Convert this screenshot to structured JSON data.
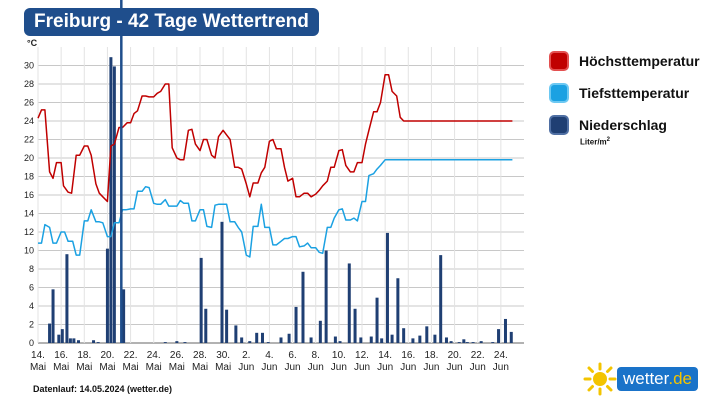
{
  "title": "Freiburg - 42 Tage Wettertrend",
  "legend": {
    "max_label": "Höchsttemperatur",
    "min_label": "Tiefsttemperatur",
    "precip_label": "Niederschlag",
    "precip_unit": "Liter/m",
    "precip_unit_sup": "2"
  },
  "footer": "Datenlauf: 14.05.2024 (wetter.de)",
  "logo": {
    "text_main": "wetter",
    "text_suffix": ".de"
  },
  "colors": {
    "max": "#c00000",
    "min": "#1ba1e2",
    "precip": "#1f3f73",
    "title_bg": "#1f4e8c"
  },
  "chart_data": {
    "type": "line",
    "y_unit": "°C",
    "ylim": [
      0,
      32
    ],
    "yticks": [
      0,
      2,
      4,
      6,
      8,
      10,
      12,
      14,
      16,
      18,
      20,
      22,
      24,
      26,
      28,
      30
    ],
    "grid": true,
    "x_range": [
      0,
      42
    ],
    "x_ticks": [
      {
        "x": 0,
        "day": "14.",
        "month": "Mai"
      },
      {
        "x": 2,
        "day": "16.",
        "month": "Mai"
      },
      {
        "x": 4,
        "day": "18.",
        "month": "Mai"
      },
      {
        "x": 6,
        "day": "20.",
        "month": "Mai"
      },
      {
        "x": 8,
        "day": "22.",
        "month": "Mai"
      },
      {
        "x": 10,
        "day": "24.",
        "month": "Mai"
      },
      {
        "x": 12,
        "day": "26.",
        "month": "Mai"
      },
      {
        "x": 14,
        "day": "28.",
        "month": "Mai"
      },
      {
        "x": 16,
        "day": "30.",
        "month": "Mai"
      },
      {
        "x": 18,
        "day": "2.",
        "month": "Jun"
      },
      {
        "x": 20,
        "day": "4.",
        "month": "Jun"
      },
      {
        "x": 22,
        "day": "6.",
        "month": "Jun"
      },
      {
        "x": 24,
        "day": "8.",
        "month": "Jun"
      },
      {
        "x": 26,
        "day": "10.",
        "month": "Jun"
      },
      {
        "x": 28,
        "day": "12.",
        "month": "Jun"
      },
      {
        "x": 30,
        "day": "14.",
        "month": "Jun"
      },
      {
        "x": 32,
        "day": "16.",
        "month": "Jun"
      },
      {
        "x": 34,
        "day": "18.",
        "month": "Jun"
      },
      {
        "x": 36,
        "day": "20.",
        "month": "Jun"
      },
      {
        "x": 38,
        "day": "22.",
        "month": "Jun"
      },
      {
        "x": 40,
        "day": "24.",
        "month": "Jun"
      }
    ],
    "current_day_x": 7.2,
    "series": [
      {
        "name": "Höchsttemperatur",
        "x": [
          0,
          0.3,
          0.6,
          1,
          1.3,
          1.6,
          2,
          2.2,
          2.6,
          2.9,
          3.3,
          3.6,
          4,
          4.3,
          4.6,
          5,
          5.3,
          5.6,
          6,
          6.3,
          6.6,
          7,
          7.3,
          7.7,
          8,
          8.3,
          8.6,
          9,
          9.3,
          9.6,
          10,
          10.3,
          10.6,
          11,
          11.3,
          11.6,
          12,
          12.3,
          12.6,
          13,
          13.3,
          13.6,
          14,
          14.3,
          14.6,
          15,
          15.3,
          15.6,
          16,
          16.3,
          16.6,
          17,
          17.3,
          17.6,
          18,
          18.3,
          18.6,
          19,
          19.3,
          19.6,
          20,
          20.3,
          20.6,
          21,
          21.3,
          21.6,
          22,
          22.3,
          22.6,
          23,
          23.3,
          23.6,
          24,
          24.3,
          24.6,
          25,
          25.3,
          25.6,
          26,
          26.3,
          26.6,
          27,
          27.3,
          27.6,
          28,
          28.3,
          28.6,
          29,
          29.3,
          29.6,
          30,
          30.3,
          30.6,
          31,
          31.3,
          31.6,
          32,
          32.3,
          32.6,
          33,
          33.3,
          33.6,
          34,
          34.3,
          34.6,
          35,
          35.3,
          35.6,
          36,
          36.3,
          36.6,
          37,
          37.3,
          37.6,
          38,
          38.3,
          38.6,
          39,
          39.3,
          39.6,
          40,
          40.3,
          40.6,
          41
        ],
        "values": [
          24.3,
          25.2,
          25.2,
          18.5,
          17.8,
          19.5,
          19.5,
          17,
          16.3,
          16.2,
          20.3,
          20.3,
          21.3,
          21.3,
          20.3,
          17.2,
          16.2,
          15.8,
          15.3,
          21.3,
          21.5,
          23.3,
          23.3,
          23.8,
          23.8,
          24.8,
          25.1,
          26.7,
          26.7,
          26.6,
          26.6,
          27,
          27.2,
          28,
          28,
          21.1,
          20,
          19.8,
          19.8,
          23,
          23.1,
          21.5,
          20.8,
          22,
          22,
          20.3,
          20,
          22.3,
          23,
          22.5,
          22,
          19,
          19,
          18.8,
          17.2,
          15.8,
          17.3,
          17.3,
          18.4,
          19,
          21.8,
          22,
          21,
          21,
          19,
          17.5,
          17.8,
          15.8,
          15.8,
          16.2,
          16.2,
          15.8,
          16.1,
          16.5,
          17,
          17.5,
          19,
          19,
          20.8,
          20.9,
          19.2,
          18.5,
          18.5,
          19.5,
          19.5,
          21.5,
          23,
          25,
          25,
          26,
          29,
          29,
          27.2,
          26.7,
          24.4,
          24,
          24,
          24,
          24,
          24,
          24,
          24,
          24,
          24,
          24,
          24,
          24,
          24,
          24,
          24,
          24,
          24,
          24,
          24,
          24,
          24,
          24,
          24,
          24,
          24,
          24,
          24,
          24,
          24
        ]
      },
      {
        "name": "Tiefsttemperatur",
        "x": [
          0,
          0.3,
          0.6,
          1,
          1.3,
          1.6,
          2,
          2.3,
          2.6,
          3,
          3.3,
          3.6,
          4,
          4.3,
          4.6,
          5,
          5.3,
          5.6,
          6,
          6.3,
          6.6,
          7,
          7.3,
          7.6,
          8,
          8.3,
          8.6,
          9,
          9.3,
          9.6,
          10,
          10.3,
          10.6,
          11,
          11.3,
          11.6,
          12,
          12.3,
          12.6,
          13,
          13.3,
          13.6,
          14,
          14.3,
          14.6,
          15,
          15.3,
          15.6,
          16,
          16.3,
          16.6,
          17,
          17.3,
          17.6,
          18,
          18.3,
          18.6,
          19,
          19.3,
          19.6,
          20,
          20.3,
          20.6,
          21,
          21.3,
          21.6,
          22,
          22.3,
          22.6,
          23,
          23.3,
          23.6,
          24,
          24.3,
          24.6,
          25,
          25.3,
          25.6,
          26,
          26.3,
          26.6,
          27,
          27.3,
          27.6,
          28,
          28.3,
          28.6,
          29,
          29.3,
          29.6,
          30,
          30.3,
          30.6,
          31,
          31.3,
          31.6,
          32,
          32.3,
          32.6,
          33,
          33.3,
          33.6,
          34,
          34.3,
          34.6,
          35,
          35.3,
          35.6,
          36,
          36.3,
          36.6,
          37,
          37.3,
          37.6,
          38,
          38.3,
          38.6,
          39,
          39.3,
          39.6,
          40,
          40.3,
          40.6,
          41
        ],
        "values": [
          10.8,
          10.8,
          12.8,
          12.5,
          10.8,
          10.8,
          12,
          12,
          11,
          11,
          9.5,
          9.5,
          13.2,
          13.2,
          14.4,
          13.1,
          13.1,
          13,
          11.5,
          11.5,
          13,
          13,
          14.4,
          14.4,
          14.5,
          14.5,
          16.4,
          16.4,
          16.9,
          16.8,
          15.1,
          15,
          15,
          15.5,
          14.8,
          14.8,
          14.8,
          15.4,
          15.1,
          15.1,
          13.2,
          13.2,
          14.4,
          14.4,
          12.6,
          12.5,
          14.9,
          15,
          15,
          15,
          13.1,
          13.1,
          12.5,
          12,
          9.5,
          9.3,
          12.6,
          12.6,
          15,
          12.5,
          12.5,
          10.6,
          10.6,
          11,
          11.3,
          11.3,
          11.5,
          11.5,
          10.4,
          10.5,
          10.8,
          10.3,
          10.3,
          9.8,
          9.7,
          12.5,
          12.5,
          13.5,
          14.4,
          14.5,
          13.3,
          13.3,
          13.5,
          13.2,
          15.3,
          15.3,
          18.1,
          18.3,
          18.8,
          19.2,
          19.8,
          19.8,
          19.8,
          19.8,
          19.8,
          19.8,
          19.8,
          19.8,
          19.8,
          19.8,
          19.8,
          19.8,
          19.8,
          19.8,
          19.8,
          19.8,
          19.8,
          19.8,
          19.8,
          19.8,
          19.8,
          19.8,
          19.8,
          19.8,
          19.8,
          19.8,
          19.8,
          19.8,
          19.8,
          19.8,
          19.8,
          19.8,
          19.8,
          19.8
        ]
      },
      {
        "name": "Niederschlag",
        "type": "bar",
        "x": [
          1,
          1.3,
          1.8,
          2.1,
          2.5,
          2.8,
          3.1,
          3.5,
          4.8,
          5.2,
          6,
          6.3,
          6.6,
          7.4,
          11,
          12,
          12.7,
          14.1,
          14.5,
          15.9,
          16.3,
          17.1,
          17.6,
          18.3,
          18.9,
          19.4,
          19.9,
          21,
          21.7,
          22.3,
          22.9,
          23.6,
          24.4,
          24.9,
          25.7,
          26.1,
          26.9,
          27.4,
          27.9,
          28.8,
          29.3,
          29.7,
          30.2,
          30.6,
          31.1,
          31.6,
          32.4,
          33,
          33.6,
          34.3,
          34.8,
          35.3,
          35.7,
          36.4,
          36.8,
          37.1,
          37.6,
          38.3,
          39.3,
          39.8,
          40.4,
          40.9
        ],
        "values": [
          2.1,
          5.8,
          0.9,
          1.5,
          9.6,
          0.5,
          0.5,
          0.3,
          0.3,
          0.1,
          10.2,
          30.9,
          29.9,
          5.8,
          0.1,
          0.2,
          0.1,
          9.2,
          3.7,
          13.1,
          3.6,
          1.9,
          0.6,
          0.2,
          1.1,
          1.1,
          0.1,
          0.6,
          1.0,
          3.9,
          7.7,
          0.6,
          2.4,
          10.0,
          0.7,
          0.2,
          8.6,
          3.7,
          0.6,
          0.7,
          4.9,
          0.5,
          11.9,
          0.9,
          7.0,
          1.6,
          0.5,
          0.8,
          1.8,
          0.9,
          9.5,
          0.6,
          0.2,
          0.1,
          0.4,
          0.1,
          0.1,
          0.2,
          0.1,
          1.5,
          2.6,
          1.2
        ]
      }
    ]
  }
}
